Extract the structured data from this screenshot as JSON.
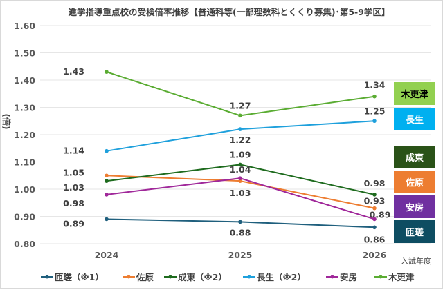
{
  "chart_data": {
    "type": "line",
    "title": "進学指導重点校の受検倍率推移【普通科等(一部理数科とくくり募集)･第5-9学区】",
    "ylabel": "(倍)",
    "xlabel": "入試年度",
    "ylim": [
      0.8,
      1.6
    ],
    "yticks": [
      "1.60",
      "1.50",
      "1.40",
      "1.30",
      "1.20",
      "1.10",
      "1.00",
      "0.90",
      "0.80"
    ],
    "categories": [
      "2024",
      "2025",
      "2026"
    ],
    "grid": true,
    "legend": "bottom",
    "series": [
      {
        "name": "匝瑳（※1）",
        "short": "匝瑳",
        "color": "#1f5f7d",
        "box_color": "#0e4d62",
        "box_text": "#ffffff",
        "values": [
          0.89,
          0.88,
          0.86
        ]
      },
      {
        "name": "佐原",
        "short": "佐原",
        "color": "#ed7d31",
        "box_color": "#ed7d31",
        "box_text": "#ffffff",
        "values": [
          1.05,
          1.03,
          0.93
        ]
      },
      {
        "name": "成東（※2）",
        "short": "成東",
        "color": "#1e6b1e",
        "box_color": "#2a5218",
        "box_text": "#ffffff",
        "values": [
          1.03,
          1.09,
          0.98
        ]
      },
      {
        "name": "長生（※2）",
        "short": "長生",
        "color": "#1ea0dc",
        "box_color": "#00b0f0",
        "box_text": "#ffffff",
        "values": [
          1.14,
          1.22,
          1.25
        ]
      },
      {
        "name": "安房",
        "short": "安房",
        "color": "#a0289a",
        "box_color": "#7030a0",
        "box_text": "#ffffff",
        "values": [
          0.98,
          1.04,
          0.89
        ]
      },
      {
        "name": "木更津",
        "short": "木更津",
        "color": "#5aac32",
        "box_color": "#92d050",
        "box_text": "#000000",
        "values": [
          1.43,
          1.27,
          1.34
        ]
      }
    ]
  }
}
